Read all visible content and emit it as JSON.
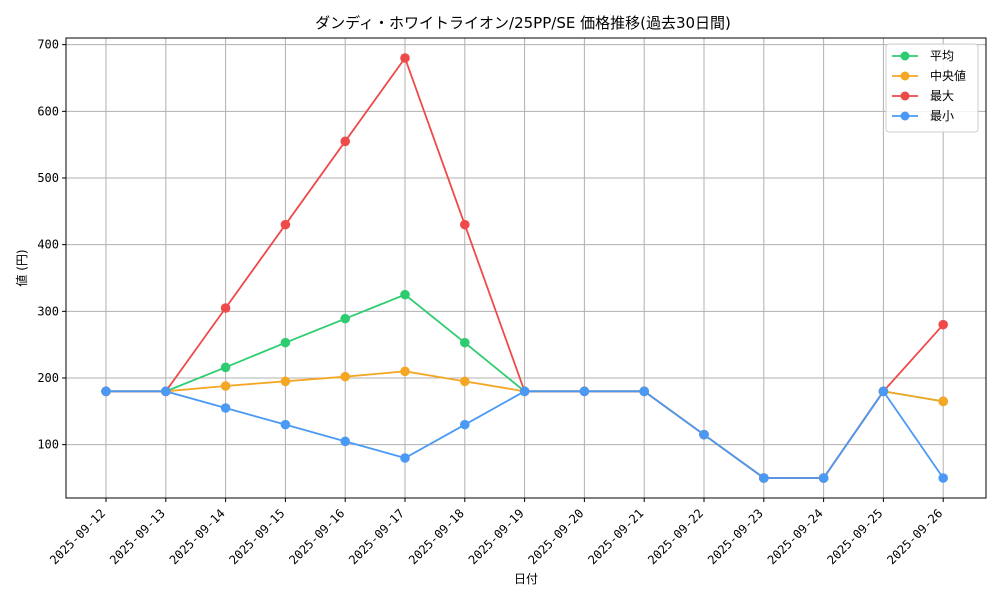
{
  "chart_data": {
    "type": "line",
    "title": "ダンディ・ホワイトライオン/25PP/SE 価格推移(過去30日間)",
    "xlabel": "日付",
    "ylabel": "値 (円)",
    "categories": [
      "2025-09-12",
      "2025-09-13",
      "2025-09-14",
      "2025-09-15",
      "2025-09-16",
      "2025-09-17",
      "2025-09-18",
      "2025-09-19",
      "2025-09-20",
      "2025-09-21",
      "2025-09-22",
      "2025-09-23",
      "2025-09-24",
      "2025-09-25",
      "2025-09-26"
    ],
    "ylim": [
      20,
      710
    ],
    "yticks": [
      100,
      200,
      300,
      400,
      500,
      600,
      700
    ],
    "grid": true,
    "legend_position": "top-right",
    "series": [
      {
        "name": "平均",
        "color": "#2ecc71",
        "values": [
          180,
          180,
          216,
          253,
          289,
          325,
          253,
          180,
          180,
          180,
          115,
          50,
          50,
          180,
          165
        ]
      },
      {
        "name": "中央値",
        "color": "#f5a623",
        "values": [
          180,
          180,
          188,
          195,
          202,
          210,
          195,
          180,
          180,
          180,
          115,
          50,
          50,
          180,
          165
        ]
      },
      {
        "name": "最大",
        "color": "#ef4a4a",
        "values": [
          180,
          180,
          305,
          430,
          555,
          680,
          430,
          180,
          180,
          180,
          115,
          50,
          50,
          180,
          280
        ]
      },
      {
        "name": "最小",
        "color": "#4a9af5",
        "values": [
          180,
          180,
          155,
          130,
          105,
          80,
          130,
          180,
          180,
          180,
          115,
          50,
          50,
          180,
          50
        ]
      }
    ]
  }
}
